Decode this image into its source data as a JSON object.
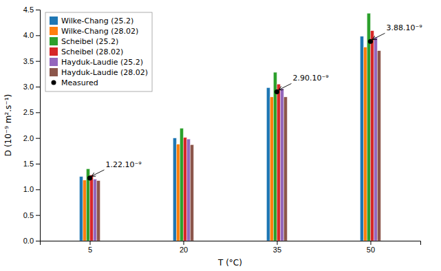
{
  "chart_data": {
    "type": "bar",
    "xlabel": "T (°C)",
    "ylabel": "D (10⁻⁹ m².s⁻¹)",
    "x": [
      5,
      20,
      35,
      50
    ],
    "series": [
      {
        "name": "Wilke-Chang (25.2)",
        "values": [
          1.25,
          2.0,
          2.98,
          3.98
        ]
      },
      {
        "name": "Wilke-Chang (28.02)",
        "values": [
          1.18,
          1.88,
          2.8,
          3.77
        ]
      },
      {
        "name": "Scheibel (25.2)",
        "values": [
          1.4,
          2.19,
          3.28,
          4.43
        ]
      },
      {
        "name": "Scheibel (28.02)",
        "values": [
          1.28,
          2.01,
          3.05,
          4.09
        ]
      },
      {
        "name": "Hayduk-Laudie (25.2)",
        "values": [
          1.2,
          1.98,
          2.96,
          3.96
        ]
      },
      {
        "name": "Hayduk-Laudie (28.02)",
        "values": [
          1.17,
          1.87,
          2.8,
          3.7
        ]
      },
      {
        "name": "Measured",
        "type": "scatter",
        "marker": "circle",
        "color": "#000000",
        "x": [
          5,
          35,
          50
        ],
        "values": [
          1.22,
          2.9,
          3.88
        ]
      }
    ],
    "annotations": [
      {
        "text": "1.22.10⁻⁹",
        "x": 5,
        "y": 1.22
      },
      {
        "text": "2.90.10⁻⁹",
        "x": 35,
        "y": 2.9
      },
      {
        "text": "3.88.10⁻⁹",
        "x": 50,
        "y": 3.88
      }
    ],
    "xlim": [
      -3,
      58
    ],
    "xticks": [
      5,
      20,
      35,
      50
    ],
    "ylim": [
      0,
      4.5
    ],
    "yticks": [
      {
        "value": 0,
        "label": "0.0"
      },
      0.5,
      {
        "value": 1,
        "label": "1.0"
      },
      1.5,
      {
        "value": 2,
        "label": "2.0"
      },
      2.5,
      {
        "value": 3,
        "label": "3.0"
      },
      3.5,
      {
        "value": 4,
        "label": "4.0"
      },
      4.5
    ],
    "legend": "upper left"
  }
}
